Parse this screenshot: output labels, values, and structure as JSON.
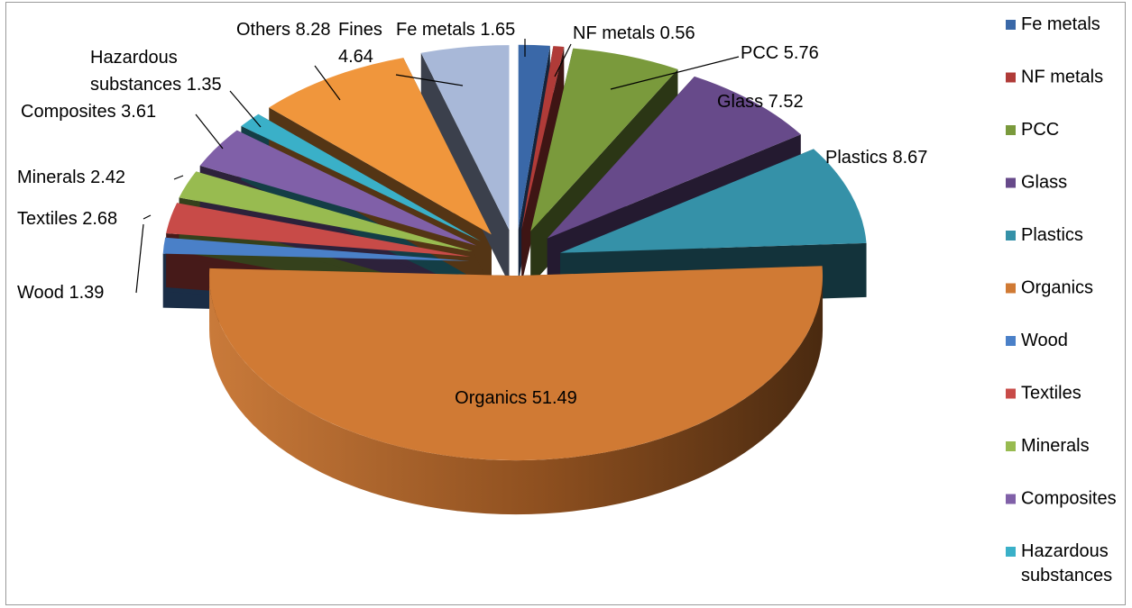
{
  "chart_data": {
    "type": "pie",
    "title": "",
    "categories": [
      "Fe metals",
      "NF metals",
      "PCC",
      "Glass",
      "Plastics",
      "Organics",
      "Wood",
      "Textiles",
      "Minerals",
      "Composites",
      "Hazardous substances",
      "Others",
      "Fines"
    ],
    "values": [
      1.65,
      0.56,
      5.76,
      7.52,
      8.67,
      51.49,
      1.39,
      2.68,
      2.42,
      3.61,
      1.35,
      8.28,
      4.64
    ],
    "colors": [
      "#3a68a8",
      "#b03b38",
      "#7a9a3c",
      "#674a8a",
      "#3591a8",
      "#d07a34",
      "#4a80c8",
      "#c84b48",
      "#98bb50",
      "#8060a8",
      "#3ab0c8",
      "#f0963c",
      "#a8b8d8"
    ],
    "data_labels": [
      {
        "lines": [
          "Fe metals 1.65"
        ]
      },
      {
        "lines": [
          "NF metals  0.56"
        ]
      },
      {
        "lines": [
          "PCC 5.76"
        ]
      },
      {
        "lines": [
          "Glass 7.52"
        ]
      },
      {
        "lines": [
          "Plastics 8.67"
        ]
      },
      {
        "lines": [
          "Organics 51.49"
        ]
      },
      {
        "lines": [
          "Wood 1.39"
        ]
      },
      {
        "lines": [
          "Textiles 2.68"
        ]
      },
      {
        "lines": [
          "Minerals  2.42"
        ]
      },
      {
        "lines": [
          "Composites 3.61"
        ]
      },
      {
        "lines": [
          "Hazardous",
          "substances 1.35"
        ]
      },
      {
        "lines": [
          "Others 8.28"
        ]
      },
      {
        "lines": [
          "Fines",
          "4.64"
        ]
      }
    ],
    "legend": {
      "position": "right",
      "entries": [
        {
          "lines": [
            "Fe metals"
          ]
        },
        {
          "lines": [
            "NF metals"
          ]
        },
        {
          "lines": [
            "PCC"
          ]
        },
        {
          "lines": [
            "Glass"
          ]
        },
        {
          "lines": [
            "Plastics"
          ]
        },
        {
          "lines": [
            "Organics"
          ]
        },
        {
          "lines": [
            "Wood"
          ]
        },
        {
          "lines": [
            "Textiles"
          ]
        },
        {
          "lines": [
            "Minerals"
          ]
        },
        {
          "lines": [
            "Composites"
          ]
        },
        {
          "lines": [
            "Hazardous",
            "substances"
          ]
        }
      ]
    },
    "style": "3d-exploded"
  }
}
